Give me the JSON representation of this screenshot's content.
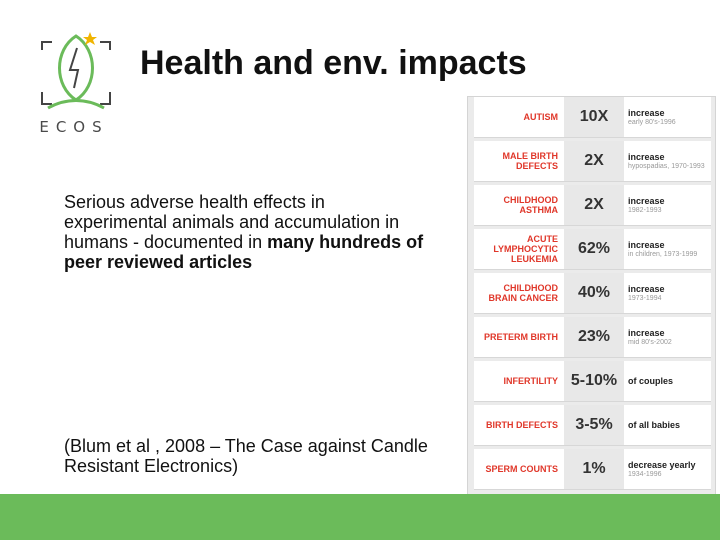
{
  "logo": {
    "text": "ECOS",
    "accent_color": "#6bbb5a",
    "star_color": "#f0b400"
  },
  "slide": {
    "title": "Health and env. impacts",
    "body_normal": "Serious adverse health effects in experimental animals and accumulation in humans - documented in ",
    "body_bold": "many hundreds of peer reviewed articles",
    "citation": "(Blum et al , 2008 – The Case against Candle Resistant Electronics)"
  },
  "table": {
    "rows": [
      {
        "label": "AUTISM",
        "value": "10X",
        "main": "increase",
        "sub": "early 80's-1996"
      },
      {
        "label": "MALE BIRTH DEFECTS",
        "value": "2X",
        "main": "increase",
        "sub": "hypospadias, 1970-1993"
      },
      {
        "label": "CHILDHOOD ASTHMA",
        "value": "2X",
        "main": "increase",
        "sub": "1982-1993"
      },
      {
        "label": "ACUTE LYMPHOCYTIC LEUKEMIA",
        "value": "62%",
        "main": "increase",
        "sub": "in children, 1973-1999"
      },
      {
        "label": "CHILDHOOD BRAIN CANCER",
        "value": "40%",
        "main": "increase",
        "sub": "1973-1994"
      },
      {
        "label": "PRETERM BIRTH",
        "value": "23%",
        "main": "increase",
        "sub": "mid 80's-2002"
      },
      {
        "label": "INFERTILITY",
        "value": "5-10%",
        "main": "of couples",
        "sub": ""
      },
      {
        "label": "BIRTH DEFECTS",
        "value": "3-5%",
        "main": "of all babies",
        "sub": ""
      },
      {
        "label": "SPERM COUNTS",
        "value": "1%",
        "main": "decrease yearly",
        "sub": "1934-1996"
      }
    ]
  },
  "colors": {
    "label_red": "#e0372a",
    "footer_green": "#6bbb5a"
  }
}
